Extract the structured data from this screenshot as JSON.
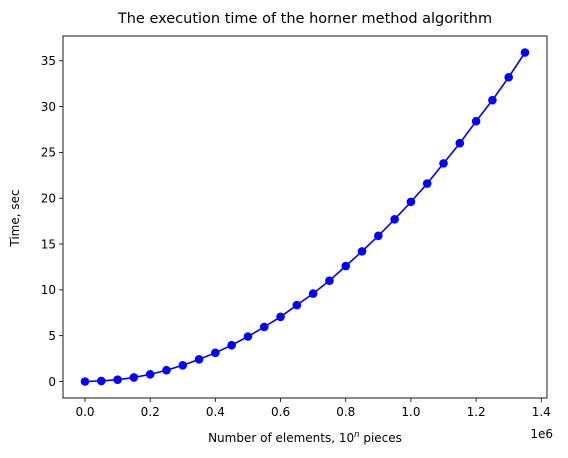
{
  "chart_data": {
    "type": "line",
    "title": "The execution time of the horner method algorithm",
    "xlabel_main": "Number of elements, 10",
    "xlabel_sup": "n",
    "xlabel_tail": " pieces",
    "ylabel": "Time, sec",
    "x_offset_label": "1e6",
    "xlim": [
      -0.0675,
      1.4175
    ],
    "ylim": [
      -1.8,
      37.7
    ],
    "xticks": [
      0.0,
      0.2,
      0.4,
      0.6,
      0.8,
      1.0,
      1.2,
      1.4
    ],
    "xtick_labels": [
      "0.0",
      "0.2",
      "0.4",
      "0.6",
      "0.8",
      "1.0",
      "1.2",
      "1.4"
    ],
    "yticks": [
      0,
      5,
      10,
      15,
      20,
      25,
      30,
      35
    ],
    "ytick_labels": [
      "0",
      "5",
      "10",
      "15",
      "20",
      "25",
      "30",
      "35"
    ],
    "grid": false,
    "series": [
      {
        "color": "#0000ff",
        "marker": "circle",
        "x": [
          0.0,
          0.05,
          0.1,
          0.15,
          0.2,
          0.25,
          0.3,
          0.35,
          0.4,
          0.45,
          0.5,
          0.55,
          0.6,
          0.65,
          0.7,
          0.75,
          0.8,
          0.85,
          0.9,
          0.95,
          1.0,
          1.05,
          1.1,
          1.15,
          1.2,
          1.25,
          1.3,
          1.35
        ],
        "y": [
          0.0,
          0.06,
          0.2,
          0.44,
          0.78,
          1.23,
          1.77,
          2.42,
          3.13,
          3.96,
          4.91,
          5.95,
          7.06,
          8.34,
          9.6,
          11.0,
          12.6,
          14.2,
          15.9,
          17.7,
          19.6,
          21.6,
          23.8,
          26.0,
          28.4,
          30.7,
          33.2,
          35.9
        ]
      }
    ]
  }
}
